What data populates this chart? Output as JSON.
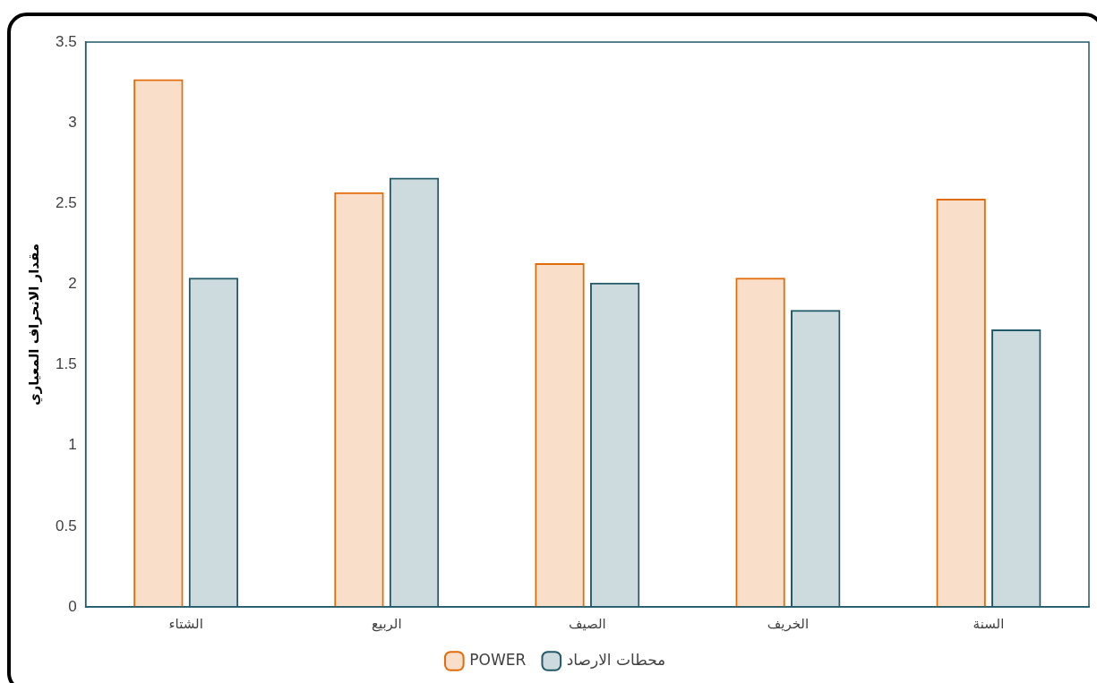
{
  "chart_data": {
    "type": "bar",
    "ylabel": "مقدار الانحراف المعياري",
    "categories": [
      "الشتاء",
      "الربيع",
      "الصيف",
      "الخريف",
      "السنة"
    ],
    "series": [
      {
        "name": "POWER",
        "color": "#e36c0a",
        "values": [
          3.27,
          2.57,
          2.13,
          2.04,
          2.53
        ]
      },
      {
        "name": "محطات الارصاد",
        "color": "#215968",
        "values": [
          2.04,
          2.66,
          2.01,
          1.84,
          1.72
        ]
      }
    ],
    "ylim": [
      0,
      3.5
    ],
    "yticks": [
      0,
      0.5,
      1,
      1.5,
      2,
      2.5,
      3,
      3.5
    ],
    "grid": false,
    "legend": "bottom"
  }
}
